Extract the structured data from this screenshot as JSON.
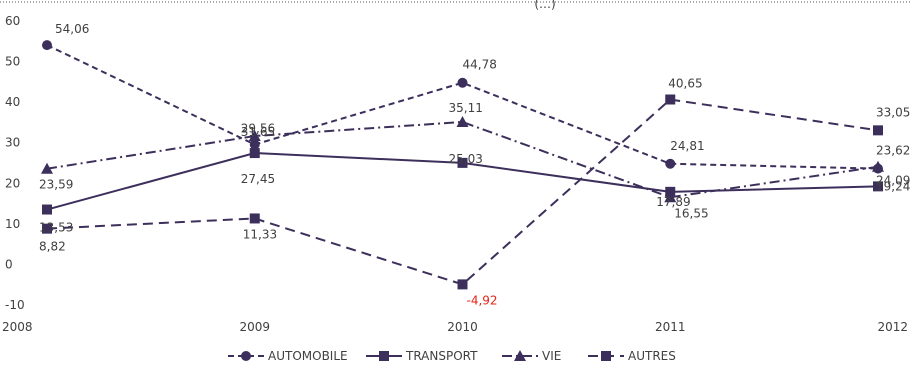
{
  "chart_data": {
    "type": "line",
    "title_fragment": "(…)",
    "x": [
      "2008",
      "2009",
      "2010",
      "2011",
      "2012"
    ],
    "ylim": [
      -10,
      60
    ],
    "yticks": [
      "60",
      "50",
      "40",
      "30",
      "20",
      "10",
      "0",
      "-10"
    ],
    "grid": false,
    "legend_position": "bottom",
    "series": [
      {
        "name": "AUTOMOBILE",
        "values": [
          54.06,
          29.56,
          44.78,
          24.81,
          23.62
        ],
        "labels": [
          "54,06",
          "29,56",
          "44,78",
          "24,81",
          "23,62"
        ],
        "line_style": "dashed",
        "marker": "circle",
        "color": "#3d2f5b"
      },
      {
        "name": "TRANSPORT",
        "values": [
          13.53,
          27.45,
          25.03,
          17.89,
          19.24
        ],
        "labels": [
          "13,53",
          "27,45",
          "25,03",
          "17,89",
          "19,24"
        ],
        "line_style": "solid",
        "marker": "square",
        "color": "#3d2f5b"
      },
      {
        "name": "VIE",
        "values": [
          23.59,
          31.65,
          35.11,
          16.55,
          24.09
        ],
        "labels": [
          "23,59",
          "31,65",
          "35,11",
          "16,55",
          "24,09"
        ],
        "line_style": "dash-dot",
        "marker": "triangle",
        "color": "#3d2f5b"
      },
      {
        "name": "AUTRES",
        "values": [
          8.82,
          11.33,
          -4.92,
          40.65,
          33.05
        ],
        "labels": [
          "8,82",
          "11,33",
          "-4,92",
          "40,65",
          "33,05"
        ],
        "line_style": "long-dash",
        "marker": "square",
        "color": "#3d2f5b"
      }
    ]
  }
}
